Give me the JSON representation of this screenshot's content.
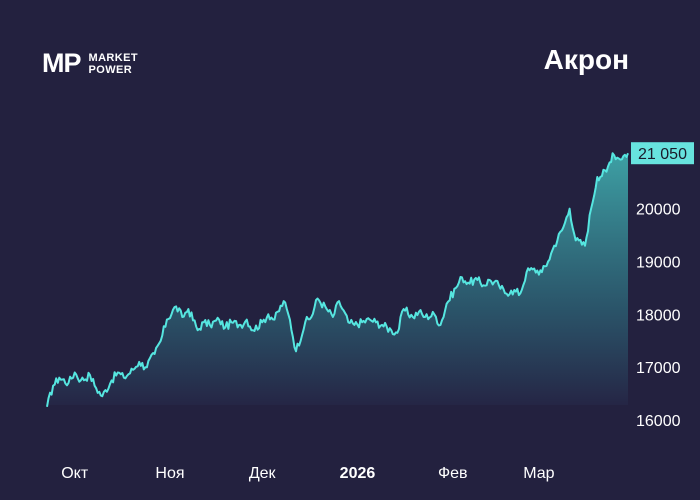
{
  "logo": {
    "mark": "MP",
    "line1": "MARKET",
    "line2": "POWER"
  },
  "title": "Акрон",
  "colors": {
    "background": "#23213f",
    "line": "#56e6e0",
    "badge": "#67e3de"
  },
  "chart_data": {
    "type": "area",
    "title": "Акрон",
    "ylim": [
      16000,
      21300
    ],
    "y_ticks": [
      16000,
      17000,
      18000,
      19000,
      20000
    ],
    "y_tick_labels": [
      "16000",
      "17000",
      "18000",
      "19000",
      "20000"
    ],
    "x_ticks": [
      {
        "label": "Окт",
        "date": "2025-10-01",
        "bold": false
      },
      {
        "label": "Ноя",
        "date": "2025-11-01",
        "bold": false
      },
      {
        "label": "Дек",
        "date": "2025-12-01",
        "bold": false
      },
      {
        "label": "2026",
        "date": "2026-01-01",
        "bold": true
      },
      {
        "label": "Фев",
        "date": "2026-02-01",
        "bold": false
      },
      {
        "label": "Мар",
        "date": "2026-03-01",
        "bold": false
      }
    ],
    "last_value_label": "21 050",
    "last_value": 21050,
    "series": [
      {
        "points": [
          [
            "2025-09-22",
            16250
          ],
          [
            "2025-09-24",
            16650
          ],
          [
            "2025-09-26",
            16800
          ],
          [
            "2025-09-29",
            16700
          ],
          [
            "2025-10-01",
            16900
          ],
          [
            "2025-10-03",
            16750
          ],
          [
            "2025-10-06",
            16850
          ],
          [
            "2025-10-08",
            16600
          ],
          [
            "2025-10-10",
            16450
          ],
          [
            "2025-10-13",
            16750
          ],
          [
            "2025-10-15",
            16900
          ],
          [
            "2025-10-17",
            16800
          ],
          [
            "2025-10-20",
            16950
          ],
          [
            "2025-10-22",
            17100
          ],
          [
            "2025-10-24",
            17000
          ],
          [
            "2025-10-27",
            17250
          ],
          [
            "2025-10-29",
            17500
          ],
          [
            "2025-10-31",
            17900
          ],
          [
            "2025-11-03",
            18150
          ],
          [
            "2025-11-05",
            17950
          ],
          [
            "2025-11-07",
            18100
          ],
          [
            "2025-11-10",
            17700
          ],
          [
            "2025-11-12",
            17850
          ],
          [
            "2025-11-14",
            17800
          ],
          [
            "2025-11-17",
            17900
          ],
          [
            "2025-11-19",
            17750
          ],
          [
            "2025-11-21",
            17850
          ],
          [
            "2025-11-24",
            17800
          ],
          [
            "2025-11-26",
            17900
          ],
          [
            "2025-11-28",
            17700
          ],
          [
            "2025-12-01",
            17850
          ],
          [
            "2025-12-03",
            18000
          ],
          [
            "2025-12-05",
            17900
          ],
          [
            "2025-12-08",
            18250
          ],
          [
            "2025-12-10",
            17900
          ],
          [
            "2025-12-12",
            17300
          ],
          [
            "2025-12-15",
            17850
          ],
          [
            "2025-12-17",
            17950
          ],
          [
            "2025-12-19",
            18300
          ],
          [
            "2025-12-22",
            18100
          ],
          [
            "2025-12-24",
            17950
          ],
          [
            "2025-12-26",
            18250
          ],
          [
            "2025-12-29",
            17850
          ],
          [
            "2025-12-31",
            17800
          ],
          [
            "2026-01-05",
            17900
          ],
          [
            "2026-01-07",
            17850
          ],
          [
            "2026-01-09",
            17800
          ],
          [
            "2026-01-12",
            17700
          ],
          [
            "2026-01-14",
            17650
          ],
          [
            "2026-01-16",
            18100
          ],
          [
            "2026-01-19",
            17950
          ],
          [
            "2026-01-21",
            18050
          ],
          [
            "2026-01-23",
            17950
          ],
          [
            "2026-01-26",
            18000
          ],
          [
            "2026-01-28",
            17800
          ],
          [
            "2026-01-30",
            18200
          ],
          [
            "2026-02-02",
            18500
          ],
          [
            "2026-02-04",
            18700
          ],
          [
            "2026-02-06",
            18600
          ],
          [
            "2026-02-09",
            18650
          ],
          [
            "2026-02-11",
            18550
          ],
          [
            "2026-02-13",
            18650
          ],
          [
            "2026-02-16",
            18550
          ],
          [
            "2026-02-18",
            18400
          ],
          [
            "2026-02-20",
            18450
          ],
          [
            "2026-02-23",
            18400
          ],
          [
            "2026-02-25",
            18800
          ],
          [
            "2026-02-27",
            18850
          ],
          [
            "2026-03-02",
            18800
          ],
          [
            "2026-03-04",
            19000
          ],
          [
            "2026-03-06",
            19300
          ],
          [
            "2026-03-09",
            19650
          ],
          [
            "2026-03-11",
            20000
          ],
          [
            "2026-03-13",
            19400
          ],
          [
            "2026-03-16",
            19300
          ],
          [
            "2026-03-18",
            20000
          ],
          [
            "2026-03-20",
            20600
          ],
          [
            "2026-03-23",
            20700
          ],
          [
            "2026-03-25",
            21050
          ],
          [
            "2026-03-27",
            20950
          ],
          [
            "2026-03-30",
            21050
          ]
        ]
      }
    ]
  }
}
